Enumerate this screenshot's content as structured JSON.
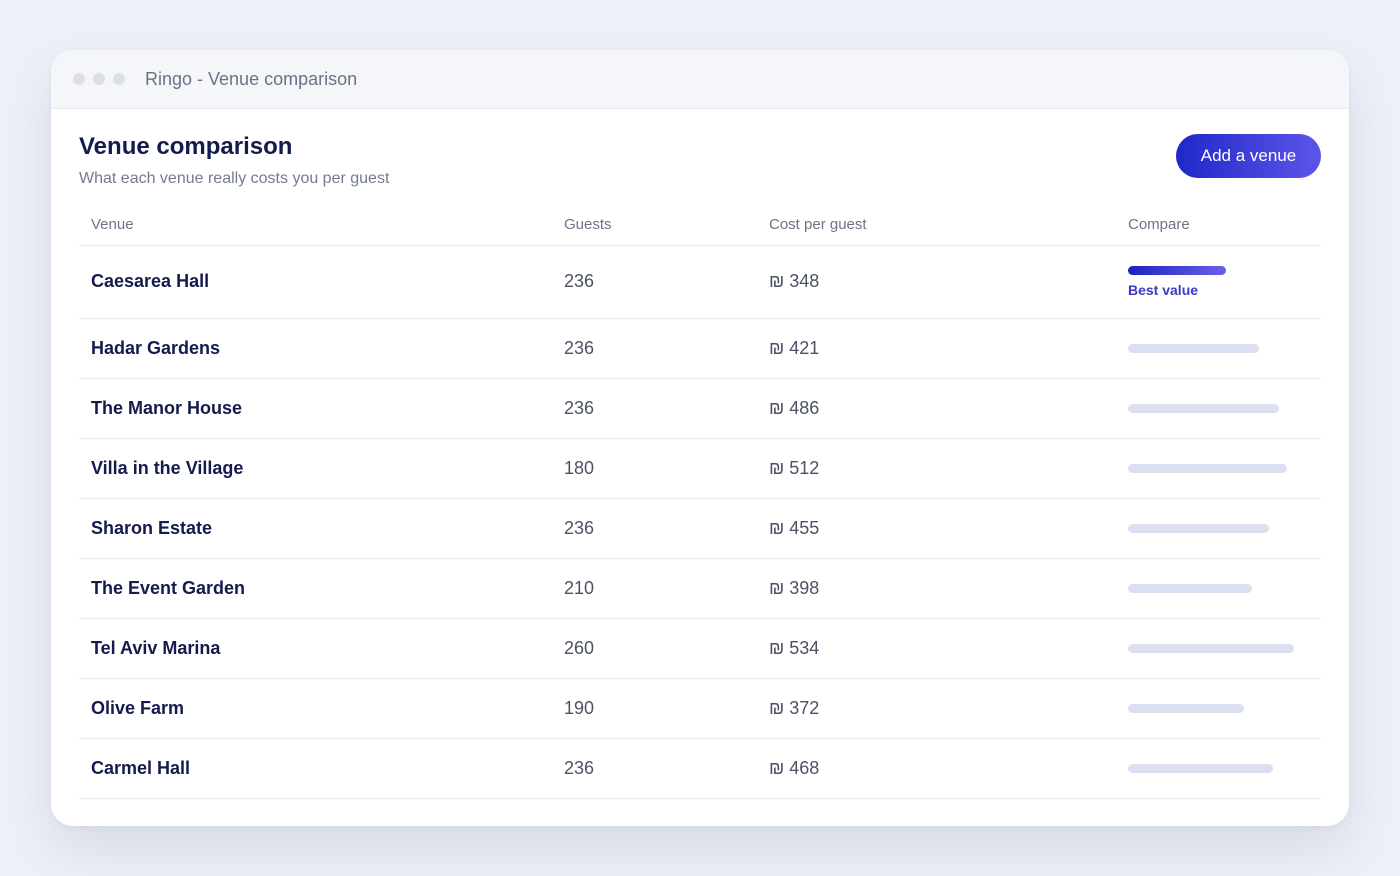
{
  "window": {
    "title": "Ringo - Venue comparison"
  },
  "header": {
    "title": "Venue comparison",
    "subtitle": "What each venue really costs you per guest",
    "add_button_label": "Add a venue"
  },
  "table": {
    "columns": [
      "Venue",
      "Guests",
      "Cost per guest",
      "Compare"
    ],
    "currency": "₪",
    "best_label": "Best value",
    "rows": [
      {
        "venue": "Caesarea Hall",
        "guests": "236",
        "cost": "₪ 348",
        "cost_value": 348,
        "best": true
      },
      {
        "venue": "Hadar Gardens",
        "guests": "236",
        "cost": "₪ 421",
        "cost_value": 421,
        "best": false
      },
      {
        "venue": "The Manor House",
        "guests": "236",
        "cost": "₪ 486",
        "cost_value": 486,
        "best": false
      },
      {
        "venue": "Villa in the Village",
        "guests": "180",
        "cost": "₪ 512",
        "cost_value": 512,
        "best": false
      },
      {
        "venue": "Sharon Estate",
        "guests": "236",
        "cost": "₪ 455",
        "cost_value": 455,
        "best": false
      },
      {
        "venue": "The Event Garden",
        "guests": "210",
        "cost": "₪ 398",
        "cost_value": 398,
        "best": false
      },
      {
        "venue": "Tel Aviv Marina",
        "guests": "260",
        "cost": "₪ 534",
        "cost_value": 534,
        "best": false
      },
      {
        "venue": "Olive Farm",
        "guests": "190",
        "cost": "₪ 372",
        "cost_value": 372,
        "best": false
      },
      {
        "venue": "Carmel Hall",
        "guests": "236",
        "cost": "₪ 468",
        "cost_value": 468,
        "best": false
      }
    ]
  },
  "colors": {
    "accent": "#2028c9",
    "accent_light": "#5d55e8",
    "text_dark": "#141b4d",
    "bar_neutral": "#dcdfef",
    "background": "#edf0f7"
  }
}
